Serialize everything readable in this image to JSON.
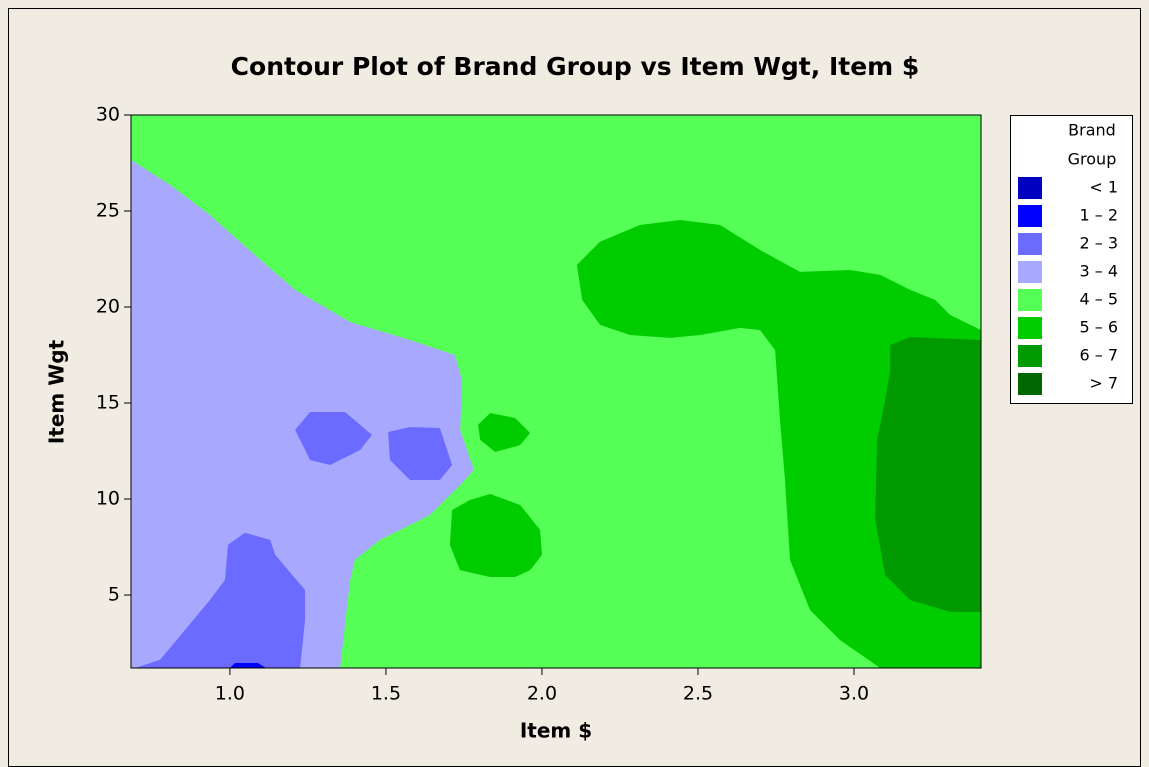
{
  "chart_data": {
    "type": "contour",
    "title": "Contour Plot of Brand Group vs Item Wgt, Item $",
    "x_label": "Item $",
    "y_label": "Item Wgt",
    "legend_title": [
      "Brand",
      "Group"
    ],
    "legend_position": "right",
    "levels": [
      {
        "label": "< 1",
        "color": "#0000c0"
      },
      {
        "label": "1 – 2",
        "color": "#0000ff"
      },
      {
        "label": "2 – 3",
        "color": "#6b6bff"
      },
      {
        "label": "3 – 4",
        "color": "#a8a8ff"
      },
      {
        "label": "4 – 5",
        "color": "#55ff55"
      },
      {
        "label": "5 – 6",
        "color": "#00cc00"
      },
      {
        "label": "6 – 7",
        "color": "#009900"
      },
      {
        "label": "> 7",
        "color": "#006600"
      }
    ],
    "xlim": [
      0.683,
      3.407
    ],
    "ylim": [
      1.2,
      30
    ],
    "xticks": [
      {
        "value": 1,
        "label": "1.0"
      },
      {
        "value": 1.5,
        "label": "1.5"
      },
      {
        "value": 2,
        "label": "2.0"
      },
      {
        "value": 2.5,
        "label": "2.5"
      },
      {
        "value": 3,
        "label": "3.0"
      }
    ],
    "yticks": [
      5,
      10,
      15,
      20,
      25,
      30
    ],
    "regions": [
      {
        "level": 4,
        "points": [
          [
            0.683,
            1.2
          ],
          [
            0.683,
            30
          ],
          [
            3.407,
            30
          ],
          [
            3.407,
            1.2
          ]
        ]
      },
      {
        "level": 3,
        "points": [
          [
            0.683,
            27.66
          ],
          [
            0.808,
            26.36
          ],
          [
            0.936,
            24.79
          ],
          [
            1.08,
            22.71
          ],
          [
            1.209,
            20.89
          ],
          [
            1.385,
            19.22
          ],
          [
            1.577,
            18.28
          ],
          [
            1.721,
            17.5
          ],
          [
            1.744,
            16.2
          ],
          [
            1.738,
            13.6
          ],
          [
            1.782,
            11.51
          ],
          [
            1.738,
            10.73
          ],
          [
            1.641,
            9.17
          ],
          [
            1.481,
            7.87
          ],
          [
            1.401,
            6.83
          ],
          [
            1.385,
            5.78
          ],
          [
            1.353,
            1.2
          ],
          [
            0.683,
            1.2
          ]
        ]
      },
      {
        "level": 2,
        "points": [
          [
            0.696,
            1.2
          ],
          [
            0.776,
            1.62
          ],
          [
            0.856,
            3.18
          ],
          [
            0.936,
            4.74
          ],
          [
            0.984,
            5.78
          ],
          [
            0.994,
            7.61
          ],
          [
            1.048,
            8.24
          ],
          [
            1.129,
            7.87
          ],
          [
            1.145,
            7.09
          ],
          [
            1.241,
            5.26
          ],
          [
            1.241,
            3.7
          ],
          [
            1.225,
            1.2
          ]
        ]
      },
      {
        "level": 2,
        "points": [
          [
            1.209,
            13.6
          ],
          [
            1.257,
            14.53
          ],
          [
            1.369,
            14.53
          ],
          [
            1.455,
            13.34
          ],
          [
            1.417,
            12.55
          ],
          [
            1.321,
            11.77
          ],
          [
            1.257,
            12.03
          ]
        ]
      },
      {
        "level": 2,
        "points": [
          [
            1.507,
            13.49
          ],
          [
            1.577,
            13.75
          ],
          [
            1.673,
            13.7
          ],
          [
            1.712,
            11.77
          ],
          [
            1.673,
            10.99
          ],
          [
            1.577,
            10.99
          ],
          [
            1.513,
            12.03
          ]
        ]
      },
      {
        "level": 1,
        "points": [
          [
            1.0,
            1.2
          ],
          [
            1.016,
            1.46
          ],
          [
            1.09,
            1.46
          ],
          [
            1.116,
            1.2
          ]
        ]
      },
      {
        "level": 5,
        "points": [
          [
            1.795,
            13.86
          ],
          [
            1.834,
            14.48
          ],
          [
            1.914,
            14.22
          ],
          [
            1.962,
            13.44
          ],
          [
            1.93,
            12.81
          ],
          [
            1.85,
            12.45
          ],
          [
            1.802,
            13.08
          ]
        ]
      },
      {
        "level": 5,
        "points": [
          [
            1.712,
            9.43
          ],
          [
            1.769,
            9.95
          ],
          [
            1.834,
            10.26
          ],
          [
            1.93,
            9.69
          ],
          [
            1.994,
            8.39
          ],
          [
            2.0,
            7.09
          ],
          [
            1.962,
            6.3
          ],
          [
            1.914,
            5.94
          ],
          [
            1.834,
            5.94
          ],
          [
            1.737,
            6.3
          ],
          [
            1.705,
            7.61
          ]
        ]
      },
      {
        "level": 5,
        "points": [
          [
            2.112,
            22.19
          ],
          [
            2.186,
            23.4
          ],
          [
            2.314,
            24.27
          ],
          [
            2.443,
            24.53
          ],
          [
            2.571,
            24.27
          ],
          [
            2.699,
            22.97
          ],
          [
            2.827,
            21.83
          ],
          [
            2.987,
            21.93
          ],
          [
            3.084,
            21.67
          ],
          [
            3.18,
            20.89
          ],
          [
            3.26,
            20.37
          ],
          [
            3.308,
            19.59
          ],
          [
            3.407,
            18.8
          ],
          [
            3.407,
            1.2
          ],
          [
            3.084,
            1.2
          ],
          [
            2.955,
            2.66
          ],
          [
            2.859,
            4.22
          ],
          [
            2.795,
            6.83
          ],
          [
            2.779,
            10.99
          ],
          [
            2.763,
            14.12
          ],
          [
            2.747,
            17.76
          ],
          [
            2.699,
            18.8
          ],
          [
            2.635,
            18.91
          ],
          [
            2.507,
            18.54
          ],
          [
            2.411,
            18.39
          ],
          [
            2.282,
            18.54
          ],
          [
            2.186,
            19.07
          ],
          [
            2.129,
            20.37
          ]
        ]
      },
      {
        "level": 6,
        "points": [
          [
            3.116,
            18.02
          ],
          [
            3.18,
            18.44
          ],
          [
            3.407,
            18.28
          ],
          [
            3.407,
            4.12
          ],
          [
            3.308,
            4.12
          ],
          [
            3.18,
            4.74
          ],
          [
            3.1,
            6.04
          ],
          [
            3.068,
            8.91
          ],
          [
            3.074,
            13.08
          ],
          [
            3.1,
            15.16
          ],
          [
            3.116,
            16.72
          ]
        ]
      }
    ]
  }
}
